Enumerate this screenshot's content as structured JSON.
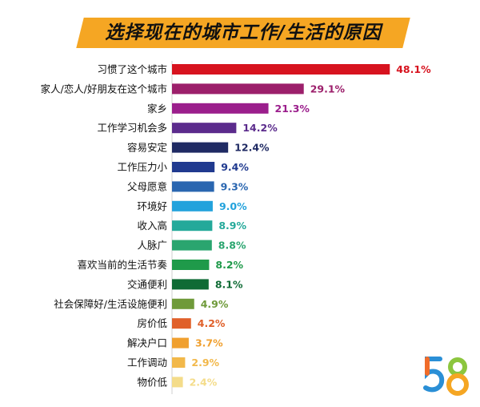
{
  "chart_data": {
    "type": "bar",
    "orientation": "horizontal",
    "title": "选择现在的城市工作/生活的原因",
    "categories": [
      "习惯了这个城市",
      "家人/恋人/好朋友在这个城市",
      "家乡",
      "工作学习机会多",
      "容易安定",
      "工作压力小",
      "父母愿意",
      "环境好",
      "收入高",
      "人脉广",
      "喜欢当前的生活节奏",
      "交通便利",
      "社会保障好/生活设施便利",
      "房价低",
      "解决户口",
      "工作调动",
      "物价低"
    ],
    "values": [
      48.1,
      29.1,
      21.3,
      14.2,
      12.4,
      9.4,
      9.3,
      9.0,
      8.9,
      8.8,
      8.2,
      8.1,
      4.9,
      4.2,
      3.7,
      2.9,
      2.4
    ],
    "value_labels": [
      "48.1%",
      "29.1%",
      "21.3%",
      "14.2%",
      "12.4%",
      "9.4%",
      "9.3%",
      "9.0%",
      "8.9%",
      "8.8%",
      "8.2%",
      "8.1%",
      "4.9%",
      "4.2%",
      "3.7%",
      "2.9%",
      "2.4%"
    ],
    "colors": [
      "#d7131f",
      "#9c1f6b",
      "#9b1e8c",
      "#5b2b8c",
      "#1f2a63",
      "#203a8f",
      "#2a66b0",
      "#22a2dc",
      "#24a99a",
      "#2aa56f",
      "#1f9a4a",
      "#0f6b35",
      "#6f9a3a",
      "#e0602a",
      "#f0a030",
      "#f2b84a",
      "#f4dc8a"
    ],
    "xlim": [
      0,
      50
    ],
    "grid": false,
    "legend": "none"
  },
  "logo": {
    "text": "58",
    "colors": [
      "#2a8fd6",
      "#f06c2a",
      "#8cc63e",
      "#f5a623"
    ]
  }
}
